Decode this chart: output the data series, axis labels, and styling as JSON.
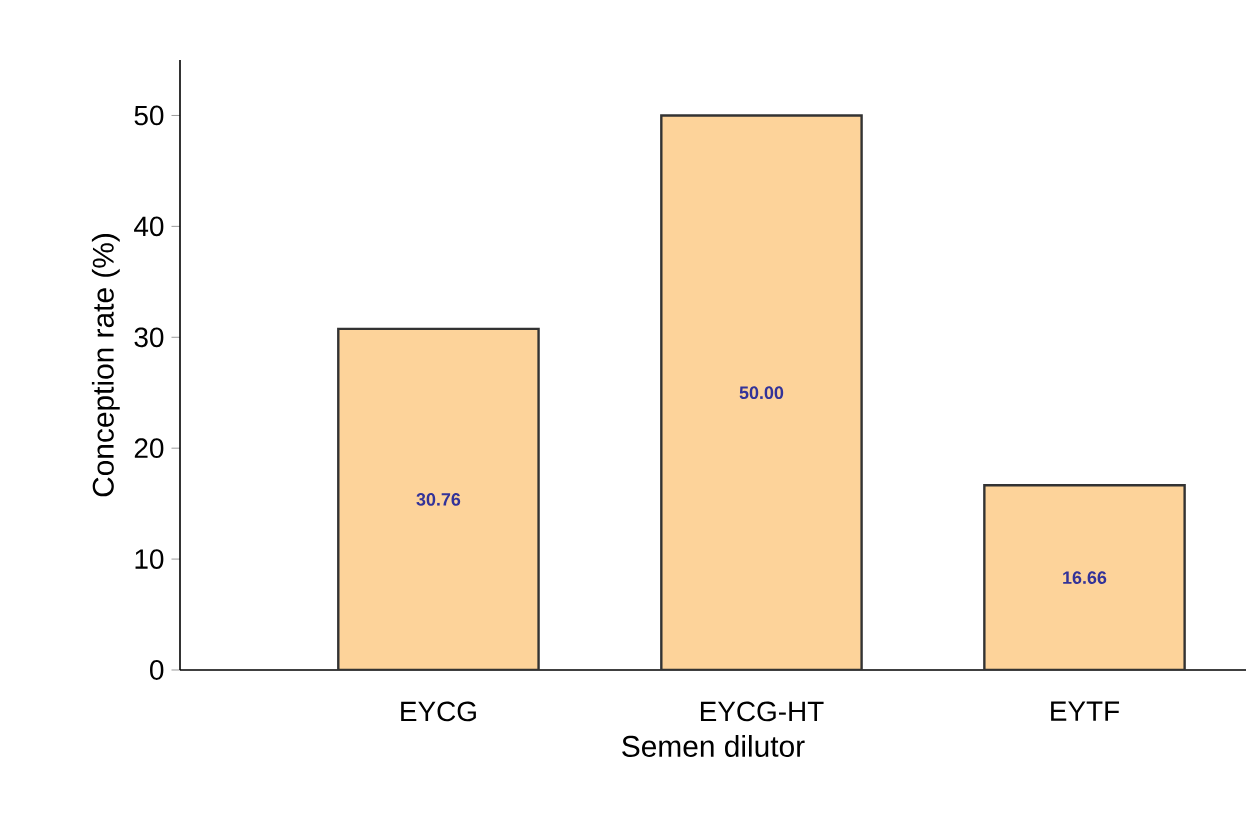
{
  "chart_data": {
    "type": "bar",
    "xlabel": "Semen dilutor",
    "ylabel": "Conception rate (%)",
    "categories": [
      "EYCG",
      "EYCG-HT",
      "EYTF"
    ],
    "values": [
      30.76,
      50.0,
      16.66
    ],
    "value_labels": [
      "30.76",
      "50.00",
      "16.66"
    ],
    "color": "#fdd39a",
    "ylim": [
      0,
      55
    ],
    "yticks": [
      0,
      10,
      20,
      30,
      40,
      50
    ]
  }
}
